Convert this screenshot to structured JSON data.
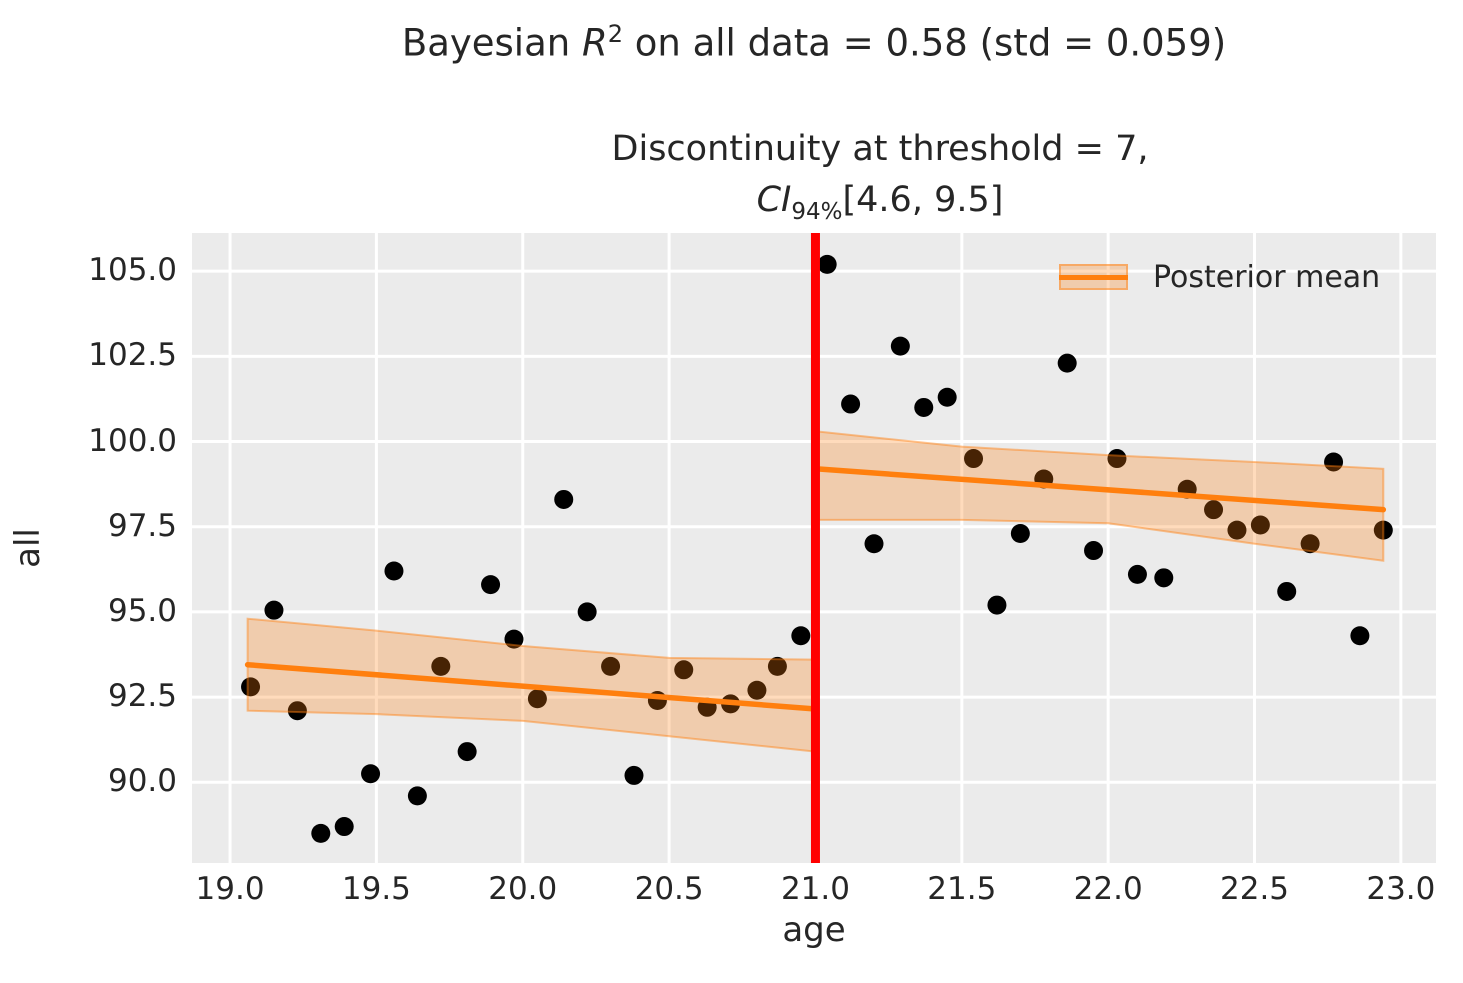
{
  "title": {
    "prefix": "Bayesian ",
    "math_var": "R",
    "math_sup": "2",
    "suffix": " on all data = 0.58 (std = 0.059)"
  },
  "subtitle": {
    "line1": "Discontinuity at threshold = 7,",
    "ci_var": "CI",
    "ci_sub": "94%",
    "ci_values": "[4.6, 9.5]"
  },
  "stats": {
    "bayesian_r2": 0.58,
    "bayesian_r2_std": 0.059,
    "discontinuity_threshold": 7,
    "discontinuity_ci_94": [
      4.6,
      9.5
    ]
  },
  "colors": {
    "mean_line": "#ff7f0e",
    "band_fill": "rgba(255,127,14,0.28)",
    "band_edge": "rgba(255,127,14,0.45)",
    "threshold_line": "#ff0000",
    "scatter": "#000000",
    "plot_bg": "#ebebeb",
    "grid": "#ffffff",
    "text": "#262626"
  },
  "chart_data": {
    "type": "scatter",
    "xlabel": "age",
    "ylabel": "all",
    "xlim": [
      18.87,
      23.12
    ],
    "ylim": [
      87.63,
      106.12
    ],
    "grid": true,
    "x_ticks": [
      19.0,
      19.5,
      20.0,
      20.5,
      21.0,
      21.5,
      22.0,
      22.5,
      23.0
    ],
    "x_tick_labels": [
      "19.0",
      "19.5",
      "20.0",
      "20.5",
      "21.0",
      "21.5",
      "22.0",
      "22.5",
      "23.0"
    ],
    "y_ticks": [
      90.0,
      92.5,
      95.0,
      97.5,
      100.0,
      102.5,
      105.0
    ],
    "y_tick_labels": [
      "90.0",
      "92.5",
      "95.0",
      "97.5",
      "100.0",
      "102.5",
      "105.0"
    ],
    "threshold_x": 21.0,
    "legend": {
      "label": "Posterior mean",
      "position": "upper right"
    },
    "series": [
      {
        "name": "observations-left",
        "type": "scatter",
        "points": [
          [
            19.07,
            92.8
          ],
          [
            19.15,
            95.05
          ],
          [
            19.23,
            92.1
          ],
          [
            19.31,
            88.5
          ],
          [
            19.39,
            88.7
          ],
          [
            19.48,
            90.25
          ],
          [
            19.56,
            96.2
          ],
          [
            19.64,
            89.6
          ],
          [
            19.72,
            93.4
          ],
          [
            19.81,
            90.9
          ],
          [
            19.89,
            95.8
          ],
          [
            19.97,
            94.2
          ],
          [
            20.05,
            92.45
          ],
          [
            20.14,
            98.3
          ],
          [
            20.22,
            95.0
          ],
          [
            20.3,
            93.4
          ],
          [
            20.38,
            90.2
          ],
          [
            20.46,
            92.4
          ],
          [
            20.55,
            93.3
          ],
          [
            20.63,
            92.2
          ],
          [
            20.71,
            92.3
          ],
          [
            20.8,
            92.7
          ],
          [
            20.87,
            93.4
          ],
          [
            20.95,
            94.3
          ]
        ]
      },
      {
        "name": "observations-right",
        "type": "scatter",
        "points": [
          [
            21.04,
            105.2
          ],
          [
            21.12,
            101.1
          ],
          [
            21.2,
            97.0
          ],
          [
            21.29,
            102.8
          ],
          [
            21.37,
            101.0
          ],
          [
            21.45,
            101.3
          ],
          [
            21.54,
            99.5
          ],
          [
            21.62,
            95.2
          ],
          [
            21.7,
            97.3
          ],
          [
            21.78,
            98.9
          ],
          [
            21.86,
            102.3
          ],
          [
            21.95,
            96.8
          ],
          [
            22.03,
            99.5
          ],
          [
            22.1,
            96.1
          ],
          [
            22.19,
            96.0
          ],
          [
            22.27,
            98.6
          ],
          [
            22.36,
            98.0
          ],
          [
            22.44,
            97.4
          ],
          [
            22.52,
            97.55
          ],
          [
            22.61,
            95.6
          ],
          [
            22.69,
            97.0
          ],
          [
            22.77,
            99.4
          ],
          [
            22.86,
            94.3
          ],
          [
            22.94,
            97.4
          ]
        ]
      },
      {
        "name": "ci-band-left",
        "type": "band",
        "x": [
          19.06,
          19.5,
          20.0,
          20.5,
          21.0
        ],
        "top": [
          94.8,
          94.45,
          94.0,
          93.65,
          93.6
        ],
        "bottom": [
          92.1,
          92.0,
          91.8,
          91.35,
          90.9
        ]
      },
      {
        "name": "ci-band-right",
        "type": "band",
        "x": [
          21.0,
          21.5,
          22.0,
          22.5,
          22.94
        ],
        "top": [
          100.3,
          99.85,
          99.6,
          99.4,
          99.2
        ],
        "bottom": [
          97.7,
          97.7,
          97.6,
          97.0,
          96.5
        ]
      },
      {
        "name": "posterior-mean-left",
        "type": "line",
        "points": [
          [
            19.06,
            93.45
          ],
          [
            21.0,
            92.15
          ]
        ]
      },
      {
        "name": "posterior-mean-right",
        "type": "line",
        "points": [
          [
            21.0,
            99.2
          ],
          [
            22.94,
            98.0
          ]
        ]
      }
    ]
  }
}
